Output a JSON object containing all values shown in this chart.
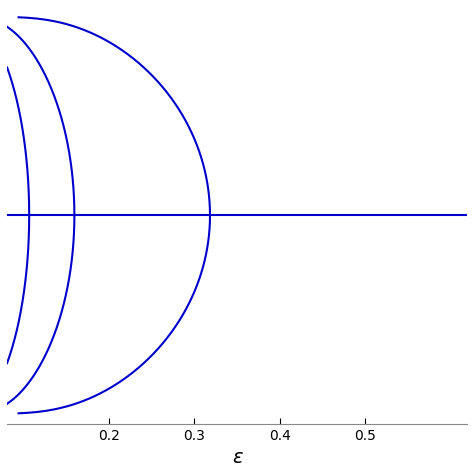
{
  "title": "",
  "xlabel": "ε",
  "ylabel": "",
  "xlim": [
    0.08,
    0.62
  ],
  "ylim": [
    -1.05,
    1.05
  ],
  "line_color": "#0000cc",
  "line_width": 1.5,
  "background_color": "#ffffff",
  "n_max": 10,
  "epsilon_max": 0.62,
  "xticks": [
    0.2,
    0.3,
    0.4,
    0.5
  ],
  "yticks": [],
  "xlabel_fontsize": 14,
  "figsize": [
    4.74,
    4.74
  ],
  "dpi": 100
}
